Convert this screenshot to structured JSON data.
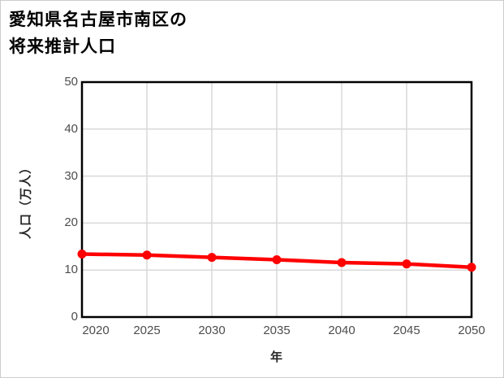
{
  "title": {
    "line1": "愛知県名古屋市南区の",
    "line2": "将来推計人口"
  },
  "chart_data": {
    "type": "line",
    "title": "愛知県名古屋市南区の将来推計人口",
    "x": [
      2020,
      2025,
      2030,
      2035,
      2040,
      2045,
      2050
    ],
    "series": [
      {
        "name": "将来推計人口",
        "values": [
          13.4,
          13.2,
          12.7,
          12.2,
          11.6,
          11.3,
          10.6
        ],
        "color": "#ff0000",
        "marker": "circle"
      }
    ],
    "xlabel": "年",
    "ylabel": "人口（万人）",
    "xlim": [
      2020,
      2050
    ],
    "ylim": [
      0,
      50
    ],
    "xticks": [
      2020,
      2025,
      2030,
      2035,
      2040,
      2045,
      2050
    ],
    "yticks": [
      0,
      10,
      20,
      30,
      40,
      50
    ],
    "grid": true,
    "legend": "none",
    "colors": {
      "gridline": "#d9d9d9",
      "frame": "#000000",
      "tick_label": "#4d4d4d",
      "axis_title": "#262626",
      "page_border": "#cccccc",
      "background": "#ffffff"
    }
  }
}
